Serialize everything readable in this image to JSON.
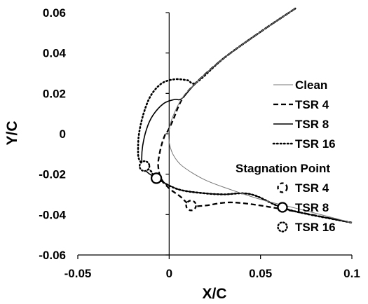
{
  "chart_data": {
    "type": "line",
    "title": "",
    "xlabel": "X/C",
    "ylabel": "Y/C",
    "xlim": [
      -0.05,
      0.1
    ],
    "ylim": [
      -0.06,
      0.06
    ],
    "x_ticks": [
      "-0.05",
      "0",
      "0.05",
      "0.1"
    ],
    "y_ticks": [
      "0.06",
      "0.04",
      "0.02",
      "0",
      "-0.02",
      "-0.04",
      "-0.06"
    ],
    "grid": false,
    "legend_position": "right",
    "series": [
      {
        "name": "Clean",
        "style": "thin-solid",
        "points": [
          [
            0.069,
            0.062
          ],
          [
            0.05,
            0.0505
          ],
          [
            0.03,
            0.0375
          ],
          [
            0.015,
            0.0255
          ],
          [
            0.007,
            0.0175
          ],
          [
            0.002,
            0.0085
          ],
          [
            0,
            0.002
          ],
          [
            0,
            -0.004
          ],
          [
            0.002,
            -0.01
          ],
          [
            0.006,
            -0.015
          ],
          [
            0.012,
            -0.019
          ],
          [
            0.02,
            -0.023
          ],
          [
            0.03,
            -0.0265
          ],
          [
            0.05,
            -0.0325
          ],
          [
            0.07,
            -0.037
          ],
          [
            0.1,
            -0.044
          ]
        ]
      },
      {
        "name": "TSR 4",
        "style": "dashed",
        "points": [
          [
            0.069,
            0.062
          ],
          [
            0.05,
            0.0505
          ],
          [
            0.03,
            0.0375
          ],
          [
            0.015,
            0.0255
          ],
          [
            0.007,
            0.017
          ],
          [
            0.002,
            0.0065
          ],
          [
            -0.001,
            0.001
          ],
          [
            -0.002,
            0
          ],
          [
            -0.004,
            -0.005
          ],
          [
            -0.0055,
            -0.011
          ],
          [
            -0.006,
            -0.016
          ],
          [
            -0.0045,
            -0.022
          ],
          [
            0,
            -0.027
          ],
          [
            0.006,
            -0.031
          ],
          [
            0.012,
            -0.0355
          ],
          [
            0.02,
            -0.0355
          ],
          [
            0.035,
            -0.034
          ],
          [
            0.06,
            -0.037
          ],
          [
            0.1,
            -0.044
          ]
        ]
      },
      {
        "name": "TSR 8",
        "style": "solid",
        "points": [
          [
            0.069,
            0.062
          ],
          [
            0.05,
            0.0505
          ],
          [
            0.03,
            0.0375
          ],
          [
            0.015,
            0.0255
          ],
          [
            0.007,
            0.0175
          ],
          [
            0.003,
            0.017
          ],
          [
            -0.003,
            0.015
          ],
          [
            -0.009,
            0.009
          ],
          [
            -0.0125,
            0.002
          ],
          [
            -0.0145,
            -0.006
          ],
          [
            -0.015,
            -0.012
          ],
          [
            -0.0145,
            -0.016
          ],
          [
            -0.012,
            -0.019
          ],
          [
            -0.007,
            -0.022
          ],
          [
            0.005,
            -0.0275
          ],
          [
            0.02,
            -0.0295
          ],
          [
            0.03,
            -0.03
          ],
          [
            0.045,
            -0.03
          ],
          [
            0.065,
            -0.0375
          ],
          [
            0.1,
            -0.044
          ]
        ]
      },
      {
        "name": "TSR 16",
        "style": "dotted",
        "points": [
          [
            0.069,
            0.062
          ],
          [
            0.05,
            0.0505
          ],
          [
            0.03,
            0.0375
          ],
          [
            0.015,
            0.0255
          ],
          [
            0.01,
            0.0265
          ],
          [
            0.003,
            0.027
          ],
          [
            -0.004,
            0.025
          ],
          [
            -0.01,
            0.019
          ],
          [
            -0.014,
            0.01
          ],
          [
            -0.0165,
            0
          ],
          [
            -0.017,
            -0.008
          ],
          [
            -0.0165,
            -0.0125
          ],
          [
            -0.0135,
            -0.016
          ],
          [
            -0.01,
            -0.0185
          ],
          [
            -0.007,
            -0.022
          ],
          [
            0.005,
            -0.0275
          ],
          [
            0.02,
            -0.0295
          ],
          [
            0.03,
            -0.03
          ],
          [
            0.045,
            -0.03
          ],
          [
            0.065,
            -0.0375
          ],
          [
            0.1,
            -0.044
          ]
        ]
      }
    ],
    "stagnation_legend_title": "Stagnation Point",
    "stagnation_points": [
      {
        "name": "TSR 4",
        "style": "dashed",
        "x": 0.012,
        "y": -0.0355
      },
      {
        "name": "TSR 8",
        "style": "solid",
        "x": -0.007,
        "y": -0.022
      },
      {
        "name": "TSR 16",
        "style": "dotted",
        "x": -0.0135,
        "y": -0.016
      }
    ]
  }
}
